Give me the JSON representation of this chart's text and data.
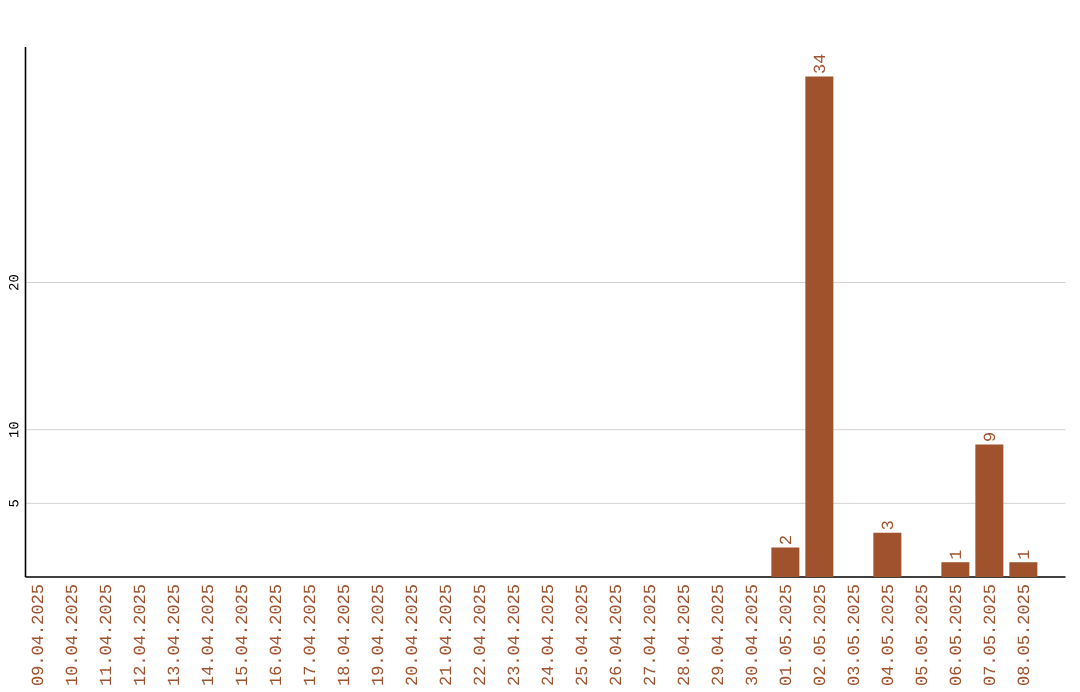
{
  "chart_data": {
    "type": "bar",
    "categories": [
      "09.04.2025",
      "10.04.2025",
      "11.04.2025",
      "12.04.2025",
      "13.04.2025",
      "14.04.2025",
      "15.04.2025",
      "16.04.2025",
      "17.04.2025",
      "18.04.2025",
      "19.04.2025",
      "20.04.2025",
      "21.04.2025",
      "22.04.2025",
      "23.04.2025",
      "24.04.2025",
      "25.04.2025",
      "26.04.2025",
      "27.04.2025",
      "28.04.2025",
      "29.04.2025",
      "30.04.2025",
      "01.05.2025",
      "02.05.2025",
      "03.05.2025",
      "04.05.2025",
      "05.05.2025",
      "06.05.2025",
      "07.05.2025",
      "08.05.2025"
    ],
    "values": [
      0,
      0,
      0,
      0,
      0,
      0,
      0,
      0,
      0,
      0,
      0,
      0,
      0,
      0,
      0,
      0,
      0,
      0,
      0,
      0,
      0,
      0,
      2,
      34,
      0,
      3,
      0,
      1,
      9,
      1
    ],
    "value_labels": [
      null,
      null,
      null,
      null,
      null,
      null,
      null,
      null,
      null,
      null,
      null,
      null,
      null,
      null,
      null,
      null,
      null,
      null,
      null,
      null,
      null,
      null,
      "2",
      "34",
      null,
      "3",
      null,
      "1",
      "9",
      "1"
    ],
    "color": "#a0522d",
    "ylim": [
      0,
      36
    ],
    "yticks": [
      5,
      10,
      20
    ],
    "grid": "y"
  }
}
